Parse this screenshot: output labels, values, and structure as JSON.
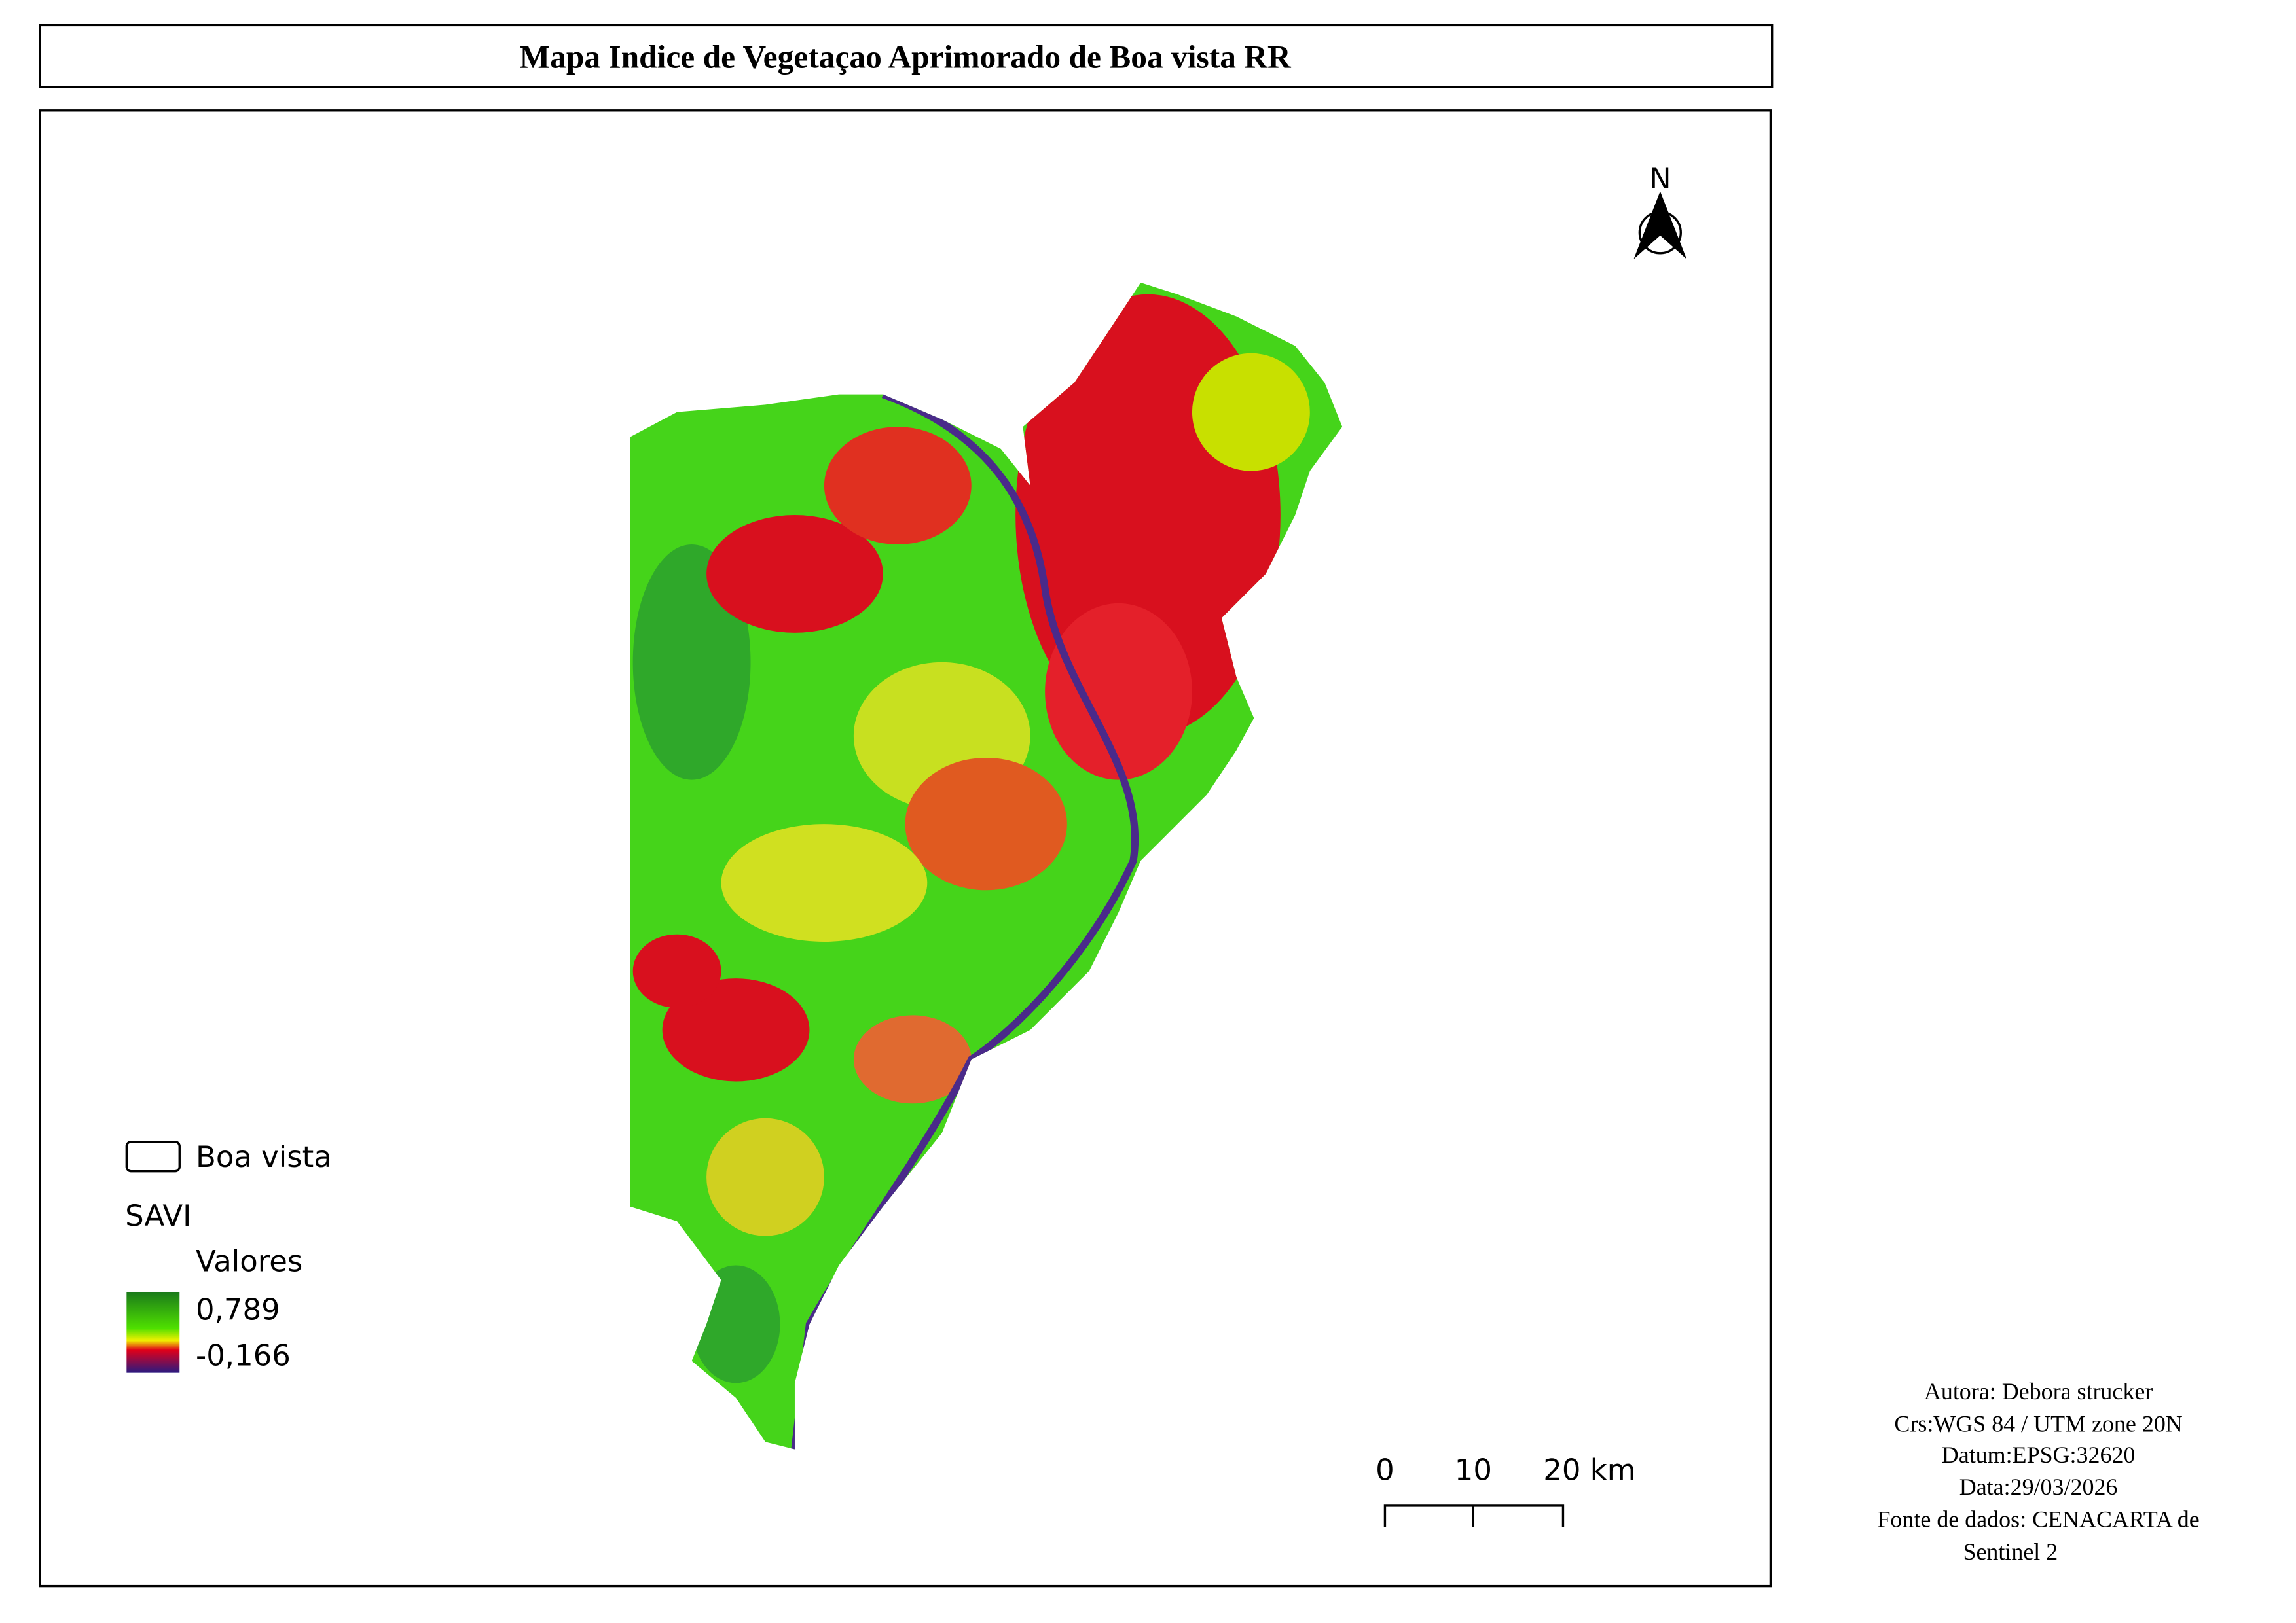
{
  "header": {
    "title": "Mapa Indice de Vegetaçao Aprimorado de Boa vista RR"
  },
  "north_arrow": {
    "label": "N"
  },
  "legend": {
    "boundary": "Boa vista",
    "layer": "SAVI",
    "group": "Valores",
    "max_label": "0,789",
    "min_label": "-0,166"
  },
  "scale_bar": {
    "labels": [
      "0",
      "10",
      "20 km"
    ]
  },
  "credits": {
    "lines": [
      "Autora: Debora strucker",
      "Crs:WGS 84 / UTM zone 20N",
      "Datum:EPSG:32620",
      "Data:29/03/2026",
      "Fonte de dados: CENACARTA de",
      "Sentinel 2"
    ]
  }
}
